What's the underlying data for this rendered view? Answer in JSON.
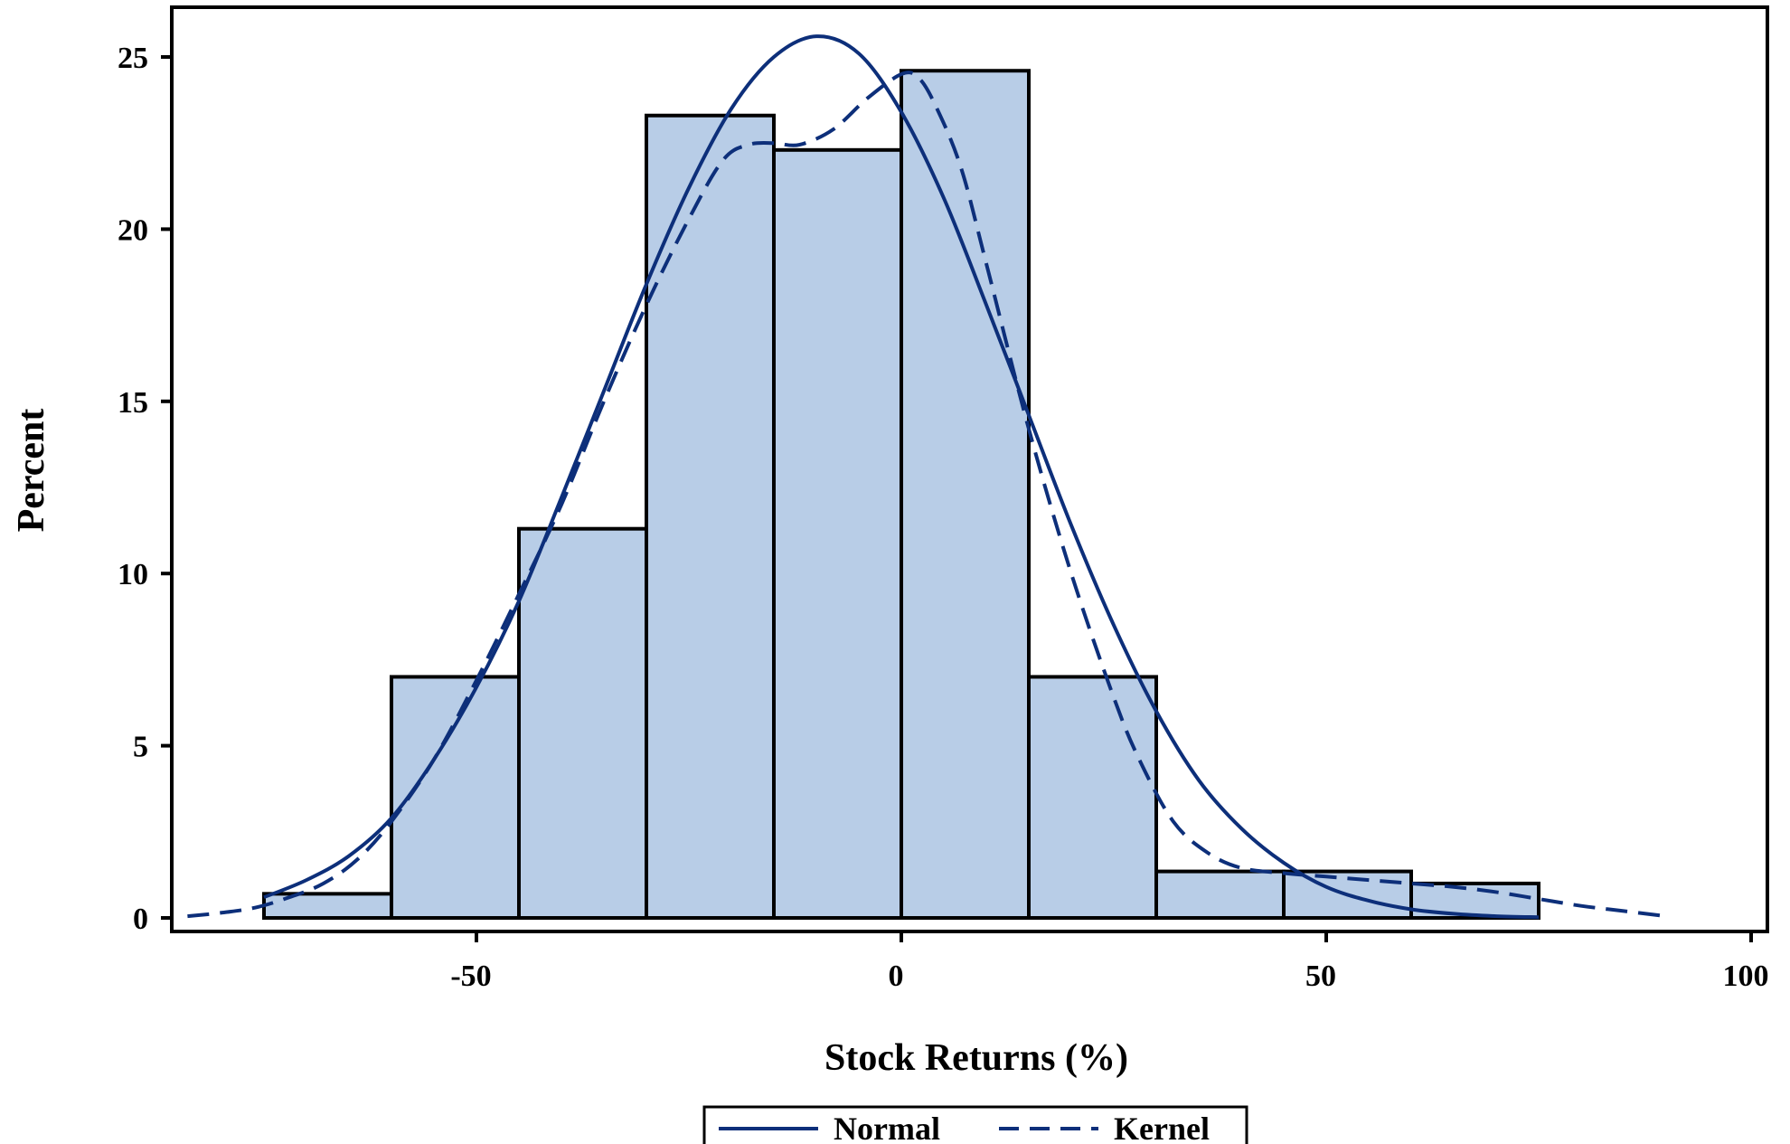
{
  "chart_data": {
    "type": "histogram",
    "xlabel": "Stock Returns (%)",
    "ylabel": "Percent",
    "xlim": [
      -86,
      100
    ],
    "ylim": [
      0,
      26
    ],
    "x_ticks": [
      -50,
      0,
      50,
      100
    ],
    "y_ticks": [
      0,
      5,
      10,
      15,
      20,
      25
    ],
    "grid": false,
    "legend_position": "bottom-center",
    "bars": [
      {
        "start": -75,
        "end": -60,
        "value": 0.7
      },
      {
        "start": -60,
        "end": -45,
        "value": 7.0
      },
      {
        "start": -45,
        "end": -30,
        "value": 11.3
      },
      {
        "start": -30,
        "end": -15,
        "value": 23.3
      },
      {
        "start": -15,
        "end": 0,
        "value": 22.3
      },
      {
        "start": 0,
        "end": 15,
        "value": 24.6
      },
      {
        "start": 15,
        "end": 30,
        "value": 7.0
      },
      {
        "start": 30,
        "end": 45,
        "value": 1.35
      },
      {
        "start": 45,
        "end": 60,
        "value": 1.35
      },
      {
        "start": 60,
        "end": 75,
        "value": 1.0
      }
    ],
    "series": [
      {
        "name": "Normal",
        "style": "solid",
        "points": [
          [
            -75,
            0.6
          ],
          [
            -70,
            1.1
          ],
          [
            -65,
            1.8
          ],
          [
            -60,
            2.9
          ],
          [
            -55,
            4.6
          ],
          [
            -50,
            6.7
          ],
          [
            -45,
            9.2
          ],
          [
            -40,
            12.2
          ],
          [
            -35,
            15.3
          ],
          [
            -30,
            18.4
          ],
          [
            -25,
            21.2
          ],
          [
            -20,
            23.5
          ],
          [
            -15,
            25.0
          ],
          [
            -10,
            25.6
          ],
          [
            -5,
            25.1
          ],
          [
            0,
            23.4
          ],
          [
            5,
            20.9
          ],
          [
            10,
            17.8
          ],
          [
            15,
            14.6
          ],
          [
            20,
            11.4
          ],
          [
            25,
            8.5
          ],
          [
            30,
            6.0
          ],
          [
            35,
            4.0
          ],
          [
            40,
            2.6
          ],
          [
            45,
            1.6
          ],
          [
            50,
            0.9
          ],
          [
            55,
            0.5
          ],
          [
            60,
            0.25
          ],
          [
            65,
            0.12
          ],
          [
            70,
            0.05
          ],
          [
            75,
            0.02
          ]
        ]
      },
      {
        "name": "Kernel",
        "style": "dashed",
        "points": [
          [
            -84,
            0.05
          ],
          [
            -80,
            0.15
          ],
          [
            -76,
            0.3
          ],
          [
            -72,
            0.6
          ],
          [
            -68,
            1.0
          ],
          [
            -64,
            1.7
          ],
          [
            -60,
            2.8
          ],
          [
            -55,
            4.6
          ],
          [
            -50,
            6.9
          ],
          [
            -45,
            9.4
          ],
          [
            -40,
            12.0
          ],
          [
            -35,
            15.0
          ],
          [
            -30,
            17.8
          ],
          [
            -25,
            20.3
          ],
          [
            -21,
            22.0
          ],
          [
            -18,
            22.45
          ],
          [
            -15,
            22.5
          ],
          [
            -12,
            22.45
          ],
          [
            -8,
            22.9
          ],
          [
            -4,
            23.8
          ],
          [
            0,
            24.5
          ],
          [
            2,
            24.4
          ],
          [
            4,
            23.6
          ],
          [
            7,
            21.8
          ],
          [
            10,
            19.0
          ],
          [
            15,
            14.2
          ],
          [
            20,
            10.0
          ],
          [
            25,
            6.4
          ],
          [
            28,
            4.6
          ],
          [
            32,
            2.8
          ],
          [
            36,
            1.9
          ],
          [
            40,
            1.45
          ],
          [
            45,
            1.3
          ],
          [
            50,
            1.2
          ],
          [
            55,
            1.1
          ],
          [
            60,
            1.0
          ],
          [
            65,
            0.9
          ],
          [
            70,
            0.75
          ],
          [
            75,
            0.55
          ],
          [
            80,
            0.35
          ],
          [
            85,
            0.2
          ],
          [
            90,
            0.05
          ]
        ]
      }
    ]
  },
  "legend": {
    "items": [
      {
        "label": "Normal",
        "style": "solid"
      },
      {
        "label": "Kernel",
        "style": "dashed"
      }
    ]
  },
  "colors": {
    "bar_fill": "#b8cde7",
    "bar_stroke": "#000000",
    "curve": "#0d2f7a",
    "axis": "#000000"
  }
}
